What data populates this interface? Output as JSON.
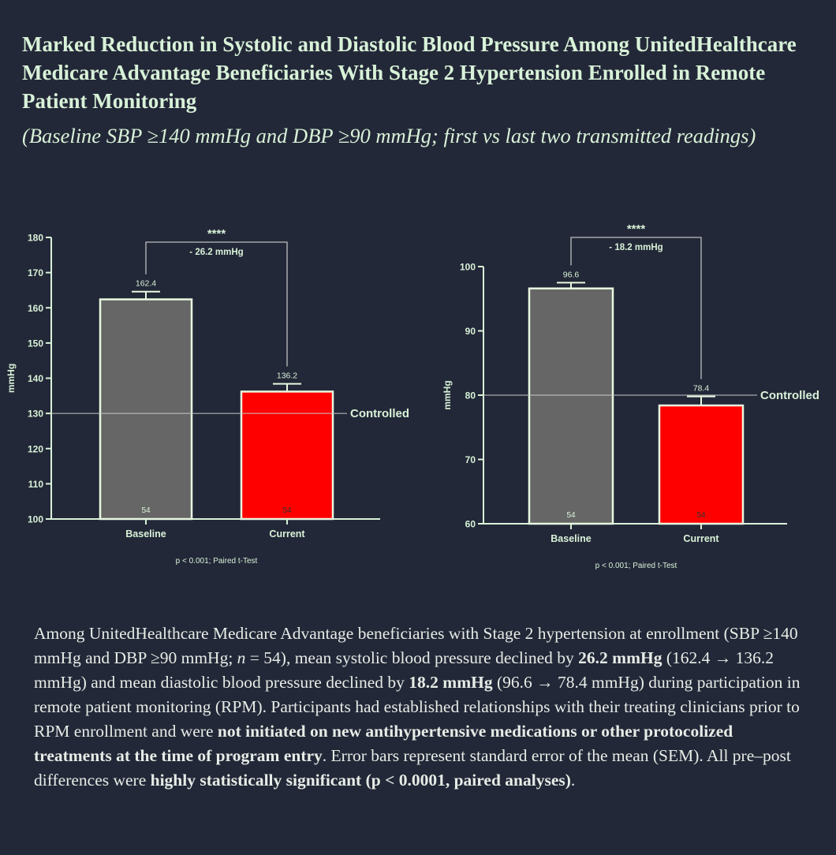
{
  "header": {
    "title": "Marked Reduction in Systolic and Diastolic Blood Pressure Among UnitedHealthcare Medicare Advantage Beneficiaries With Stage 2 Hypertension Enrolled in Remote Patient Monitoring",
    "subtitle": "(Baseline SBP ≥140 mmHg and DBP ≥90 mmHg; first vs last two transmitted readings)"
  },
  "colors": {
    "background": "#232838",
    "title": "#d8f2d8",
    "axis": "#d8f2d8",
    "baseline_bar": "#666666",
    "current_bar": "#ff0000",
    "bar_outline": "#e8f8e0"
  },
  "chart_data": [
    {
      "type": "bar",
      "categories": [
        "Baseline",
        "Current"
      ],
      "values": [
        162.4,
        136.2
      ],
      "value_labels": [
        "162.4",
        "136.2"
      ],
      "n_labels": [
        "54",
        "54"
      ],
      "sem": [
        2.2,
        2.2
      ],
      "ylabel": "mmHg",
      "ylim": [
        100,
        180
      ],
      "yticks": [
        100,
        110,
        120,
        130,
        140,
        150,
        160,
        170,
        180
      ],
      "reference_line": {
        "value": 130,
        "label": "Controlled"
      },
      "significance": {
        "stars": "****",
        "difference_label": "- 26.2 mmHg"
      },
      "note": "p < 0.001; Paired t-Test"
    },
    {
      "type": "bar",
      "categories": [
        "Baseline",
        "Current"
      ],
      "values": [
        96.6,
        78.4
      ],
      "value_labels": [
        "96.6",
        "78.4"
      ],
      "n_labels": [
        "54",
        "54"
      ],
      "sem": [
        0.9,
        1.4
      ],
      "ylabel": "mmHg",
      "ylim": [
        60,
        100
      ],
      "yticks": [
        60,
        70,
        80,
        90,
        100
      ],
      "reference_line": {
        "value": 80,
        "label": "Controlled"
      },
      "significance": {
        "stars": "****",
        "difference_label": "- 18.2 mmHg"
      },
      "note": "p < 0.001; Paired t-Test"
    }
  ],
  "summary": {
    "p1": "Among UnitedHealthcare Medicare Advantage beneficiaries with Stage 2 hypertension at enrollment (SBP ≥140 mmHg and DBP ≥90 mmHg; ",
    "n_italic": "n",
    "p2": " = 54), mean systolic blood pressure declined by ",
    "b1": "26.2 mmHg",
    "p3": " (162.4 → 136.2 mmHg) and mean diastolic blood pressure declined by ",
    "b2": "18.2 mmHg",
    "p4": " (96.6 → 78.4 mmHg) during participation in remote patient monitoring (RPM). Participants had established relationships with their treating clinicians prior to RPM enrollment and were ",
    "b3": "not initiated on new antihypertensive medications or other protocolized treatments at the time of program entry",
    "p5": ". Error bars represent standard error of the mean (SEM). All pre–post differences were ",
    "b4": "highly statistically significant (p < 0.0001, paired analyses)",
    "p6": "."
  }
}
